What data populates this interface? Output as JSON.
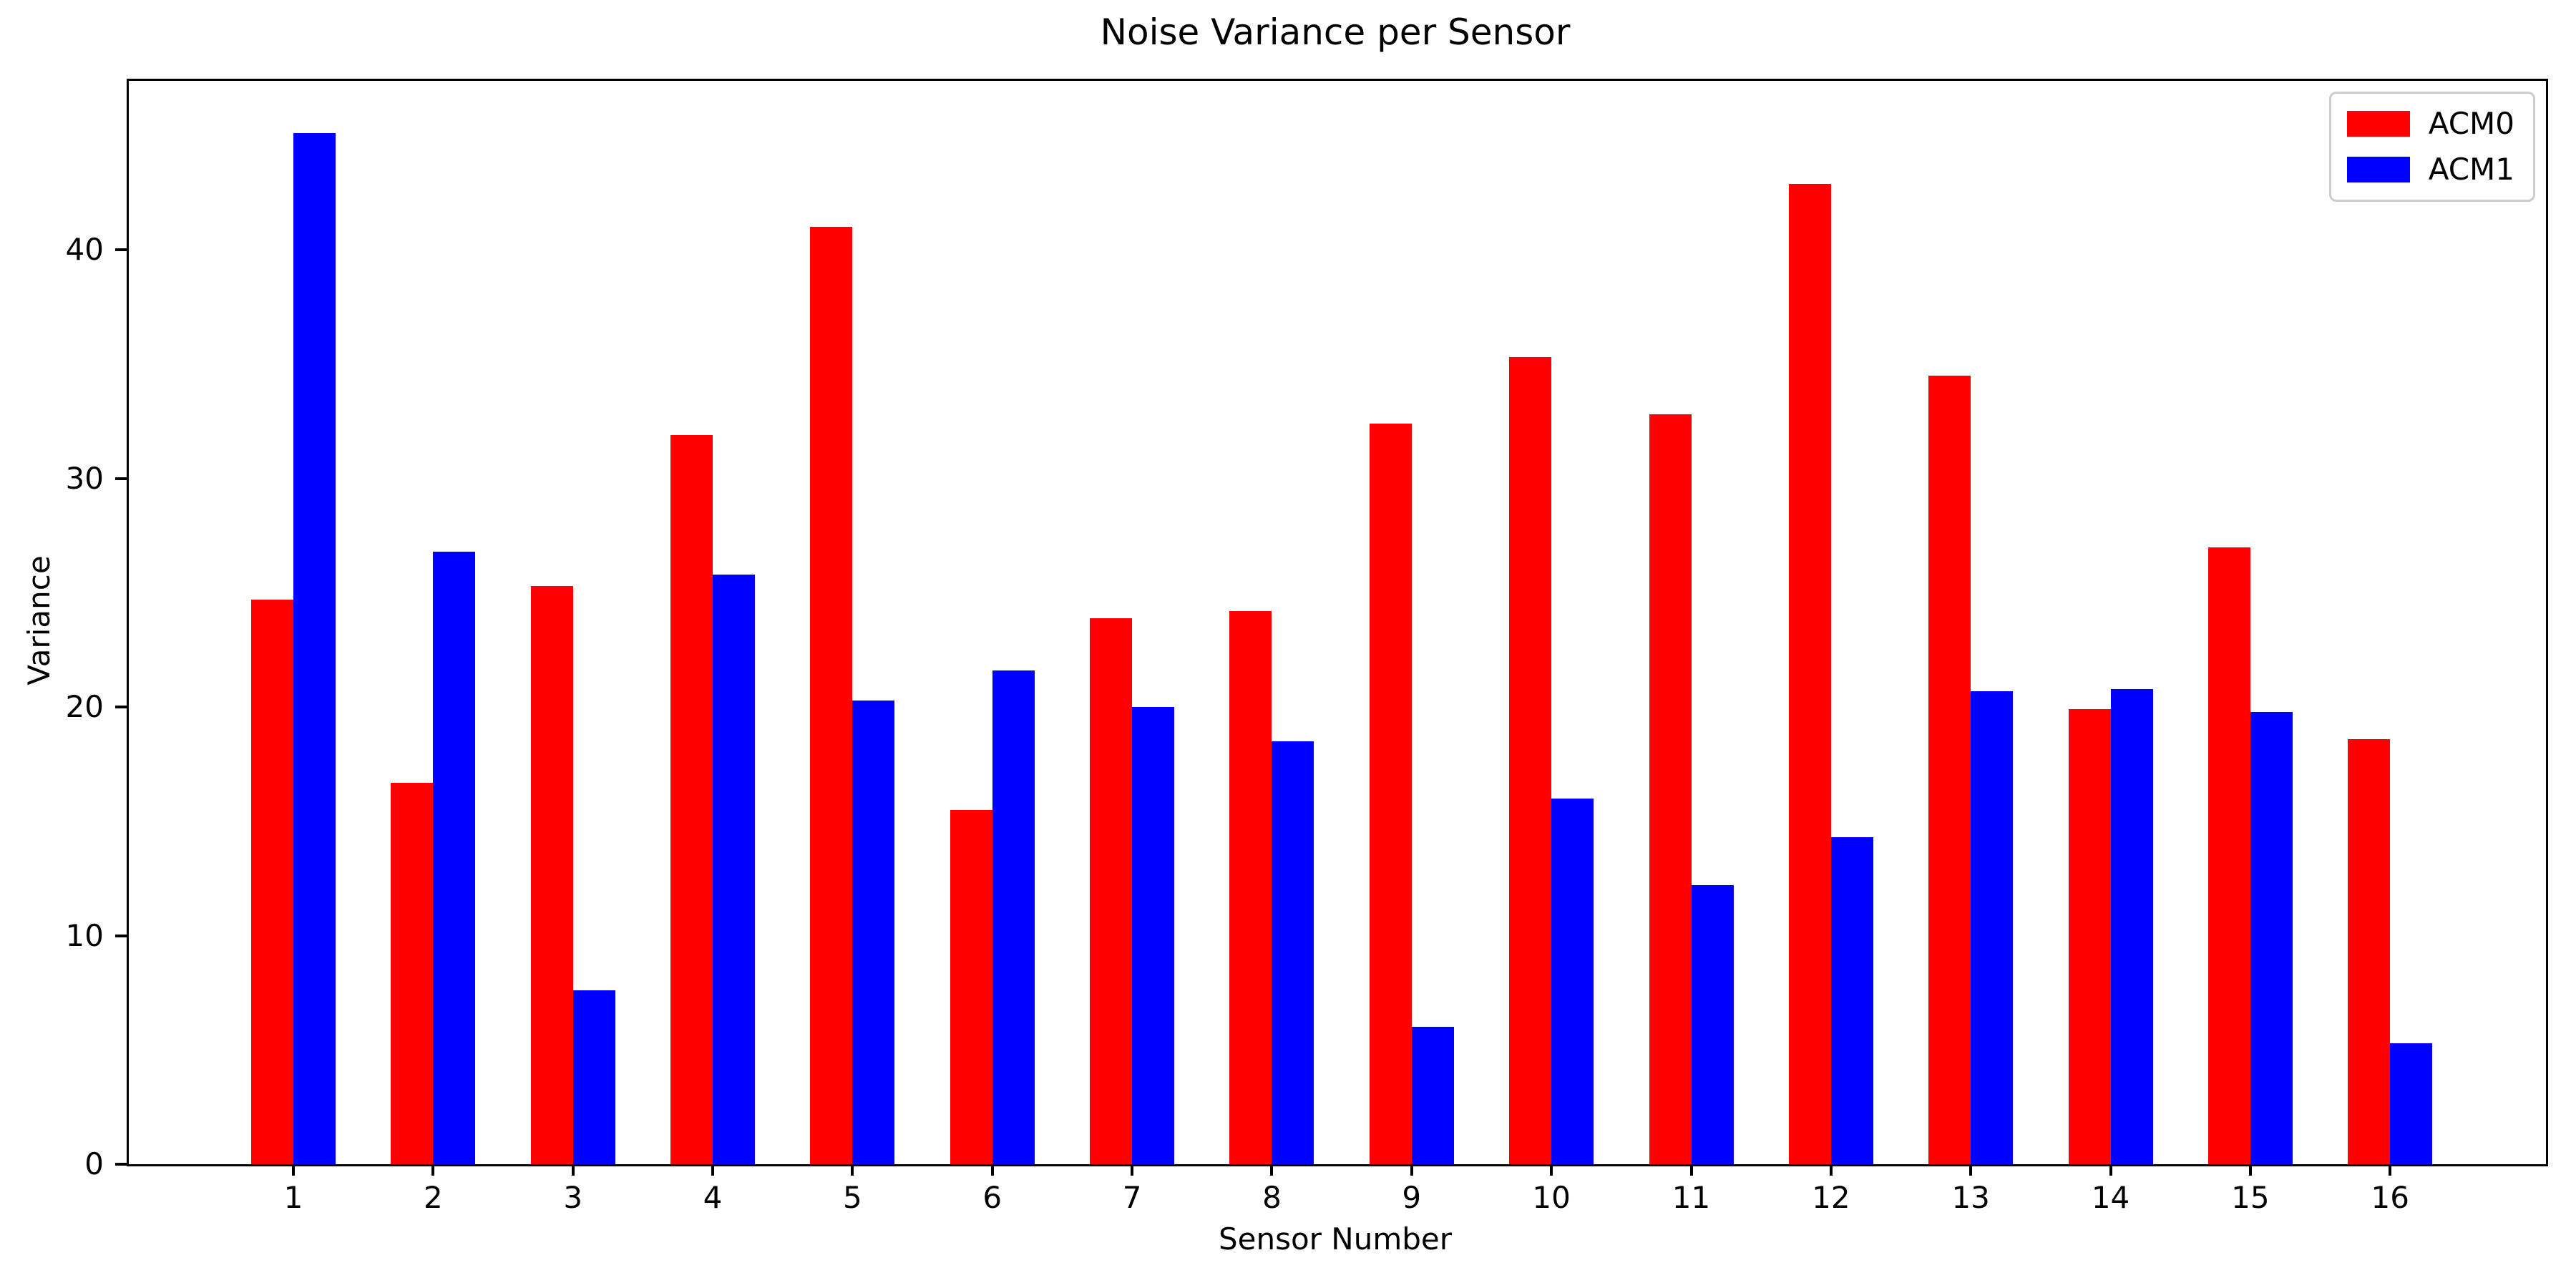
{
  "figure": {
    "title": "Noise Variance per Sensor",
    "xlabel": "Sensor Number",
    "ylabel": "Variance"
  },
  "legend": {
    "position": "upper-right",
    "items": [
      {
        "label": "ACM0",
        "color": "#ff0000"
      },
      {
        "label": "ACM1",
        "color": "#0000ff"
      }
    ]
  },
  "chart_data": {
    "type": "bar",
    "title": "Noise Variance per Sensor",
    "xlabel": "Sensor Number",
    "ylabel": "Variance",
    "categories": [
      1,
      2,
      3,
      4,
      5,
      6,
      7,
      8,
      9,
      10,
      11,
      12,
      13,
      14,
      15,
      16
    ],
    "series": [
      {
        "name": "ACM0",
        "color": "#ff0000",
        "values": [
          24.7,
          16.7,
          25.3,
          31.9,
          41.0,
          15.5,
          23.9,
          24.2,
          32.4,
          35.3,
          32.8,
          42.9,
          34.5,
          19.9,
          27.0,
          18.6
        ]
      },
      {
        "name": "ACM1",
        "color": "#0000ff",
        "values": [
          45.1,
          26.8,
          7.6,
          25.8,
          20.3,
          21.6,
          20.0,
          18.5,
          6.0,
          16.0,
          12.2,
          14.3,
          20.7,
          20.8,
          19.8,
          5.3
        ]
      }
    ],
    "ylim": [
      0,
      47.4
    ],
    "yticks": [
      0,
      10,
      20,
      30,
      40
    ],
    "grid": false,
    "legend_position": "upper right",
    "background": "#ffffff"
  }
}
